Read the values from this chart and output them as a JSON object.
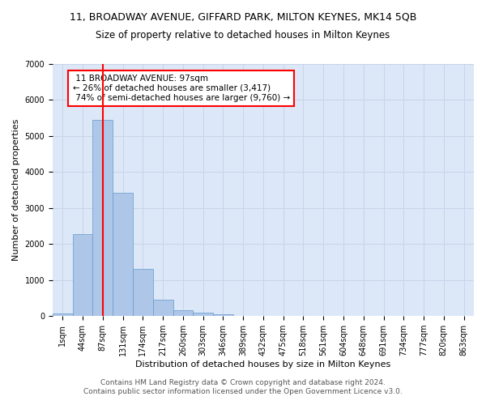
{
  "title_line1": "11, BROADWAY AVENUE, GIFFARD PARK, MILTON KEYNES, MK14 5QB",
  "title_line2": "Size of property relative to detached houses in Milton Keynes",
  "xlabel": "Distribution of detached houses by size in Milton Keynes",
  "ylabel": "Number of detached properties",
  "footer_line1": "Contains HM Land Registry data © Crown copyright and database right 2024.",
  "footer_line2": "Contains public sector information licensed under the Open Government Licence v3.0.",
  "categories": [
    "1sqm",
    "44sqm",
    "87sqm",
    "131sqm",
    "174sqm",
    "217sqm",
    "260sqm",
    "303sqm",
    "346sqm",
    "389sqm",
    "432sqm",
    "475sqm",
    "518sqm",
    "561sqm",
    "604sqm",
    "648sqm",
    "691sqm",
    "734sqm",
    "777sqm",
    "820sqm",
    "863sqm"
  ],
  "values": [
    75,
    2280,
    5450,
    3430,
    1310,
    460,
    155,
    90,
    60,
    0,
    0,
    0,
    0,
    0,
    0,
    0,
    0,
    0,
    0,
    0,
    0
  ],
  "bar_color": "#aec6e8",
  "bar_edge_color": "#6699cc",
  "ylim": [
    0,
    7000
  ],
  "yticks": [
    0,
    1000,
    2000,
    3000,
    4000,
    5000,
    6000,
    7000
  ],
  "property_label": "11 BROADWAY AVENUE: 97sqm",
  "pct_smaller": 26,
  "count_smaller": 3417,
  "pct_larger": 74,
  "count_larger": 9760,
  "vline_x_index": 2,
  "grid_color": "#c8d4e8",
  "background_color": "#dce8f8",
  "title_fontsize": 9,
  "subtitle_fontsize": 8.5,
  "axis_label_fontsize": 8,
  "tick_fontsize": 7,
  "annotation_fontsize": 7.5,
  "footer_fontsize": 6.5
}
